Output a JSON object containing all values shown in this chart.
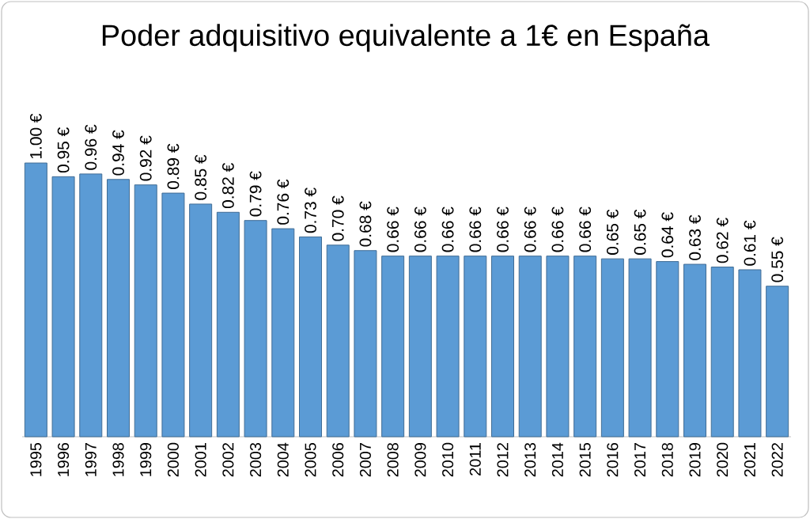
{
  "chart_data": {
    "type": "bar",
    "title": "Poder adquisitivo equivalente a 1€ en España",
    "categories": [
      "1995",
      "1996",
      "1997",
      "1998",
      "1999",
      "2000",
      "2001",
      "2002",
      "2003",
      "2004",
      "2005",
      "2006",
      "2007",
      "2008",
      "2009",
      "2010",
      "2011",
      "2012",
      "2013",
      "2014",
      "2015",
      "2016",
      "2017",
      "2018",
      "2019",
      "2020",
      "2021",
      "2022"
    ],
    "values": [
      1.0,
      0.95,
      0.96,
      0.94,
      0.92,
      0.89,
      0.85,
      0.82,
      0.79,
      0.76,
      0.73,
      0.7,
      0.68,
      0.66,
      0.66,
      0.66,
      0.66,
      0.66,
      0.66,
      0.66,
      0.66,
      0.65,
      0.65,
      0.64,
      0.63,
      0.62,
      0.61,
      0.55
    ],
    "value_labels": [
      "1.00 €",
      "0.95 €",
      "0.96 €",
      "0.94 €",
      "0.92 €",
      "0.89 €",
      "0.85 €",
      "0.82 €",
      "0.79 €",
      "0.76 €",
      "0.73 €",
      "0.70 €",
      "0.68 €",
      "0.66 €",
      "0.66 €",
      "0.66 €",
      "0.66 €",
      "0.66 €",
      "0.66 €",
      "0.66 €",
      "0.66 €",
      "0.65 €",
      "0.65 €",
      "0.64 €",
      "0.63 €",
      "0.62 €",
      "0.61 €",
      "0.55 €"
    ],
    "color": "#5b9bd5"
  }
}
